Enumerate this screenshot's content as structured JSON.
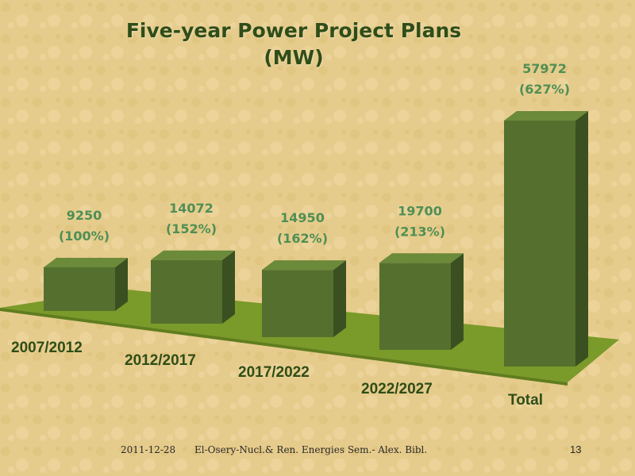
{
  "slide": {
    "title_line1": "Five-year Power Project Plans",
    "title_line2": "(MW)",
    "footer_date": "2011-12-28",
    "footer_credit": "El-Osery-Nucl.& Ren. Energies Sem.- Alex. Bibl.",
    "page_number": "13"
  },
  "colors": {
    "background": "#e6cc8c",
    "floor": "#7a9a2a",
    "bar_front": "#55702e",
    "bar_side": "#3a5020",
    "bar_top": "#6b8a3a",
    "label_value": "#4f8f55",
    "label_category": "#2f4d18",
    "title": "#2f4d18"
  },
  "chart_data": {
    "type": "bar",
    "categories": [
      "2007/2012",
      "2012/2017",
      "2017/2022",
      "2022/2027",
      "Total"
    ],
    "values": [
      9250,
      14072,
      14950,
      19700,
      57972
    ],
    "data_labels": [
      [
        "9250",
        "(100%)"
      ],
      [
        "14072",
        "(152%)"
      ],
      [
        "14950",
        "(162%)"
      ],
      [
        "19700",
        "(213%)"
      ],
      [
        "57972",
        "(627%)"
      ]
    ],
    "title": "Five-year Power Project Plans (MW)",
    "xlabel": "",
    "ylabel": "",
    "grid": false,
    "legend": "none"
  }
}
